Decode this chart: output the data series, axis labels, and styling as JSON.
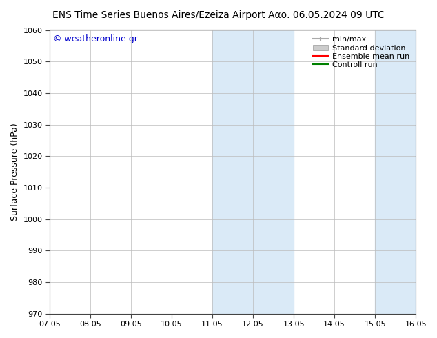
{
  "title_left": "ENS Time Series Buenos Aires/Ezeiza Airport",
  "title_right": "Ααο. 06.05.2024 09 UTC",
  "ylabel": "Surface Pressure (hPa)",
  "ylim": [
    970,
    1060
  ],
  "yticks": [
    970,
    980,
    990,
    1000,
    1010,
    1020,
    1030,
    1040,
    1050,
    1060
  ],
  "xtick_labels": [
    "07.05",
    "08.05",
    "09.05",
    "10.05",
    "11.05",
    "12.05",
    "13.05",
    "14.05",
    "15.05",
    "16.05"
  ],
  "xtick_positions": [
    0,
    1,
    2,
    3,
    4,
    5,
    6,
    7,
    8,
    9
  ],
  "xlim": [
    0,
    9
  ],
  "shaded_regions": [
    {
      "xmin": 4,
      "xmax": 6,
      "color": "#daeaf7"
    },
    {
      "xmin": 8,
      "xmax": 9,
      "color": "#daeaf7"
    }
  ],
  "watermark_text": "© weatheronline.gr",
  "watermark_color": "#0000cc",
  "legend_entries": [
    {
      "label": "min/max",
      "color": "#aaaaaa",
      "lw": 1.5
    },
    {
      "label": "Standard deviation",
      "color": "#cccccc",
      "lw": 8
    },
    {
      "label": "Ensemble mean run",
      "color": "red",
      "lw": 1.5
    },
    {
      "label": "Controll run",
      "color": "green",
      "lw": 1.5
    }
  ],
  "bg_color": "#ffffff",
  "plot_bg_color": "#ffffff",
  "grid_color": "#bbbbbb",
  "title_fontsize": 10,
  "tick_fontsize": 8,
  "ylabel_fontsize": 9,
  "watermark_fontsize": 9,
  "legend_fontsize": 8
}
